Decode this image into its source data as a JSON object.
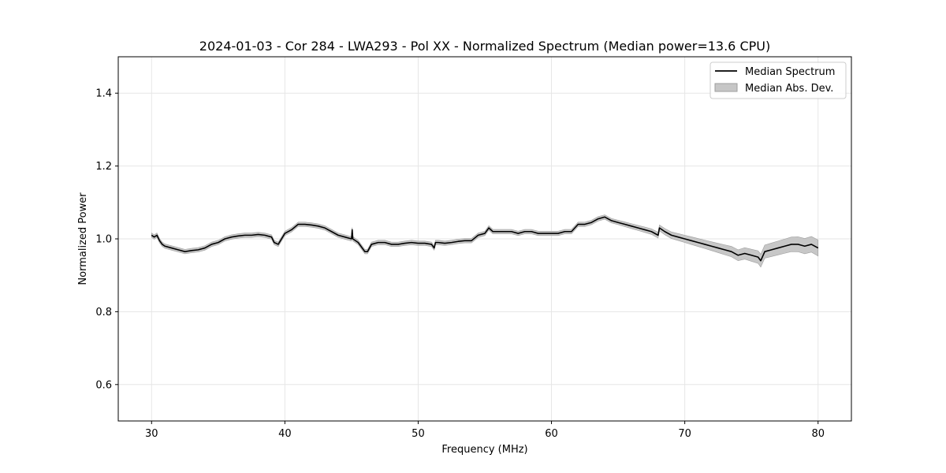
{
  "chart_data": {
    "type": "line",
    "title": "2024-01-03 - Cor 284 - LWA293 - Pol XX - Normalized Spectrum (Median power=13.6 CPU)",
    "xlabel": "Frequency (MHz)",
    "ylabel": "Normalized Power",
    "xlim": [
      27.5,
      82.5
    ],
    "ylim": [
      0.5,
      1.5
    ],
    "xticks": [
      30,
      40,
      50,
      60,
      70,
      80
    ],
    "yticks": [
      0.6,
      0.8,
      1.0,
      1.2,
      1.4
    ],
    "xtick_labels": [
      "30",
      "40",
      "50",
      "60",
      "70",
      "80"
    ],
    "ytick_labels": [
      "0.6",
      "0.8",
      "1.0",
      "1.2",
      "1.4"
    ],
    "grid": true,
    "legend_position": "top-right",
    "legend": [
      "Median Spectrum",
      "Median Abs. Dev."
    ],
    "colors": {
      "line": "#000000",
      "band": "#bdbdbd",
      "band_edge": "#9e9e9e",
      "grid": "#e6e6e6"
    },
    "series": [
      {
        "name": "Median Spectrum",
        "x": [
          30.0,
          30.2,
          30.4,
          30.6,
          30.8,
          31.0,
          31.5,
          32.0,
          32.5,
          33.0,
          33.5,
          34.0,
          34.5,
          35.0,
          35.5,
          36.0,
          36.5,
          37.0,
          37.5,
          38.0,
          38.5,
          39.0,
          39.2,
          39.5,
          40.0,
          40.5,
          41.0,
          41.5,
          42.0,
          42.5,
          43.0,
          43.5,
          44.0,
          44.5,
          45.0,
          45.05,
          45.1,
          45.5,
          46.0,
          46.2,
          46.5,
          47.0,
          47.5,
          48.0,
          48.5,
          49.0,
          49.5,
          50.0,
          50.5,
          51.0,
          51.2,
          51.3,
          51.5,
          52.0,
          52.5,
          53.0,
          53.5,
          54.0,
          54.5,
          55.0,
          55.3,
          55.6,
          56.0,
          56.5,
          57.0,
          57.5,
          58.0,
          58.5,
          59.0,
          59.5,
          60.0,
          60.5,
          61.0,
          61.5,
          62.0,
          62.5,
          63.0,
          63.5,
          64.0,
          64.5,
          65.0,
          65.5,
          66.0,
          66.5,
          67.0,
          67.5,
          68.0,
          68.1,
          68.5,
          69.0,
          69.5,
          70.0,
          70.5,
          71.0,
          71.5,
          72.0,
          72.5,
          73.0,
          73.5,
          74.0,
          74.5,
          75.0,
          75.5,
          75.7,
          76.0,
          76.5,
          77.0,
          77.5,
          78.0,
          78.5,
          79.0,
          79.5,
          80.0
        ],
        "y": [
          1.01,
          1.005,
          1.01,
          0.995,
          0.985,
          0.98,
          0.975,
          0.97,
          0.965,
          0.968,
          0.97,
          0.975,
          0.985,
          0.99,
          1.0,
          1.005,
          1.008,
          1.01,
          1.01,
          1.012,
          1.01,
          1.005,
          0.99,
          0.985,
          1.015,
          1.025,
          1.04,
          1.04,
          1.038,
          1.035,
          1.03,
          1.02,
          1.01,
          1.005,
          1.0,
          1.025,
          1.0,
          0.99,
          0.965,
          0.965,
          0.985,
          0.99,
          0.99,
          0.985,
          0.985,
          0.988,
          0.99,
          0.988,
          0.988,
          0.985,
          0.975,
          0.99,
          0.99,
          0.988,
          0.99,
          0.993,
          0.995,
          0.995,
          1.01,
          1.015,
          1.03,
          1.02,
          1.02,
          1.02,
          1.02,
          1.015,
          1.02,
          1.02,
          1.015,
          1.015,
          1.015,
          1.015,
          1.02,
          1.02,
          1.04,
          1.04,
          1.045,
          1.055,
          1.06,
          1.05,
          1.045,
          1.04,
          1.035,
          1.03,
          1.025,
          1.02,
          1.01,
          1.03,
          1.02,
          1.01,
          1.005,
          1.0,
          0.995,
          0.99,
          0.985,
          0.98,
          0.975,
          0.97,
          0.965,
          0.955,
          0.96,
          0.955,
          0.95,
          0.94,
          0.965,
          0.97,
          0.975,
          0.98,
          0.985,
          0.985,
          0.98,
          0.985,
          0.975
        ]
      },
      {
        "name": "Median Abs. Dev.",
        "x": [
          30.0,
          35.0,
          40.0,
          45.0,
          50.0,
          55.0,
          60.0,
          65.0,
          68.0,
          70.0,
          72.0,
          74.0,
          76.0,
          78.0,
          80.0
        ],
        "halfwidth": [
          0.006,
          0.006,
          0.006,
          0.006,
          0.006,
          0.006,
          0.006,
          0.006,
          0.008,
          0.01,
          0.012,
          0.015,
          0.018,
          0.02,
          0.022
        ]
      }
    ]
  }
}
